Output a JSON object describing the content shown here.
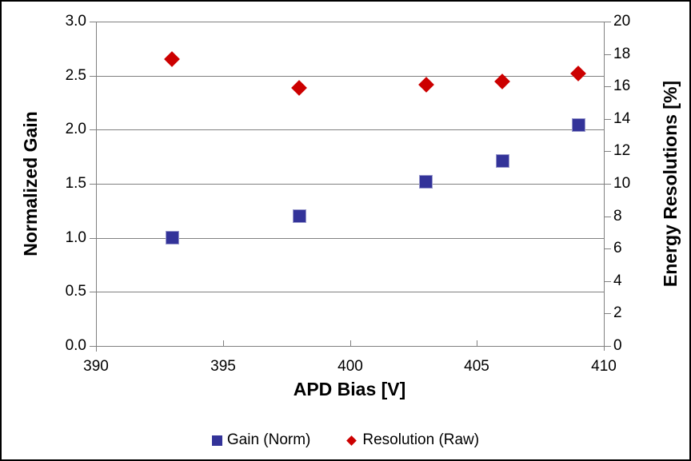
{
  "chart_data": {
    "type": "scatter",
    "title": "",
    "xlabel": "APD Bias [V]",
    "ylabel_left": "Normalized Gain",
    "ylabel_right": "Energy Resolutions [%]",
    "x": [
      393,
      398,
      403,
      406,
      409
    ],
    "series": [
      {
        "name": "Gain (Norm)",
        "axis": "left",
        "marker": "square",
        "color": "#333399",
        "values": [
          1.0,
          1.2,
          1.52,
          1.71,
          2.04
        ]
      },
      {
        "name": "Resolution (Raw)",
        "axis": "right",
        "marker": "diamond",
        "color": "#CC0000",
        "values": [
          17.7,
          15.9,
          16.1,
          16.3,
          16.8
        ]
      }
    ],
    "x_axis": {
      "min": 390,
      "max": 410,
      "step": 5,
      "tick_labels": [
        "390",
        "395",
        "400",
        "405",
        "410"
      ]
    },
    "y_left": {
      "min": 0,
      "max": 3,
      "step": 0.5,
      "tick_labels": [
        "0.0",
        "0.5",
        "1.0",
        "1.5",
        "2.0",
        "2.5",
        "3.0"
      ]
    },
    "y_right": {
      "min": 0,
      "max": 20,
      "step": 2,
      "tick_labels": [
        "0",
        "2",
        "4",
        "6",
        "8",
        "10",
        "12",
        "14",
        "16",
        "18",
        "20"
      ]
    },
    "grid": "horizontal-only",
    "legend_position": "bottom",
    "colors": {
      "axis_and_grid": "#808080",
      "gain_marker": "#333399",
      "gain_marker_edge": "#9999CC",
      "resolution_marker": "#CC0000",
      "text": "#000000",
      "background": "#FFFFFF",
      "frame": "#000000"
    }
  }
}
